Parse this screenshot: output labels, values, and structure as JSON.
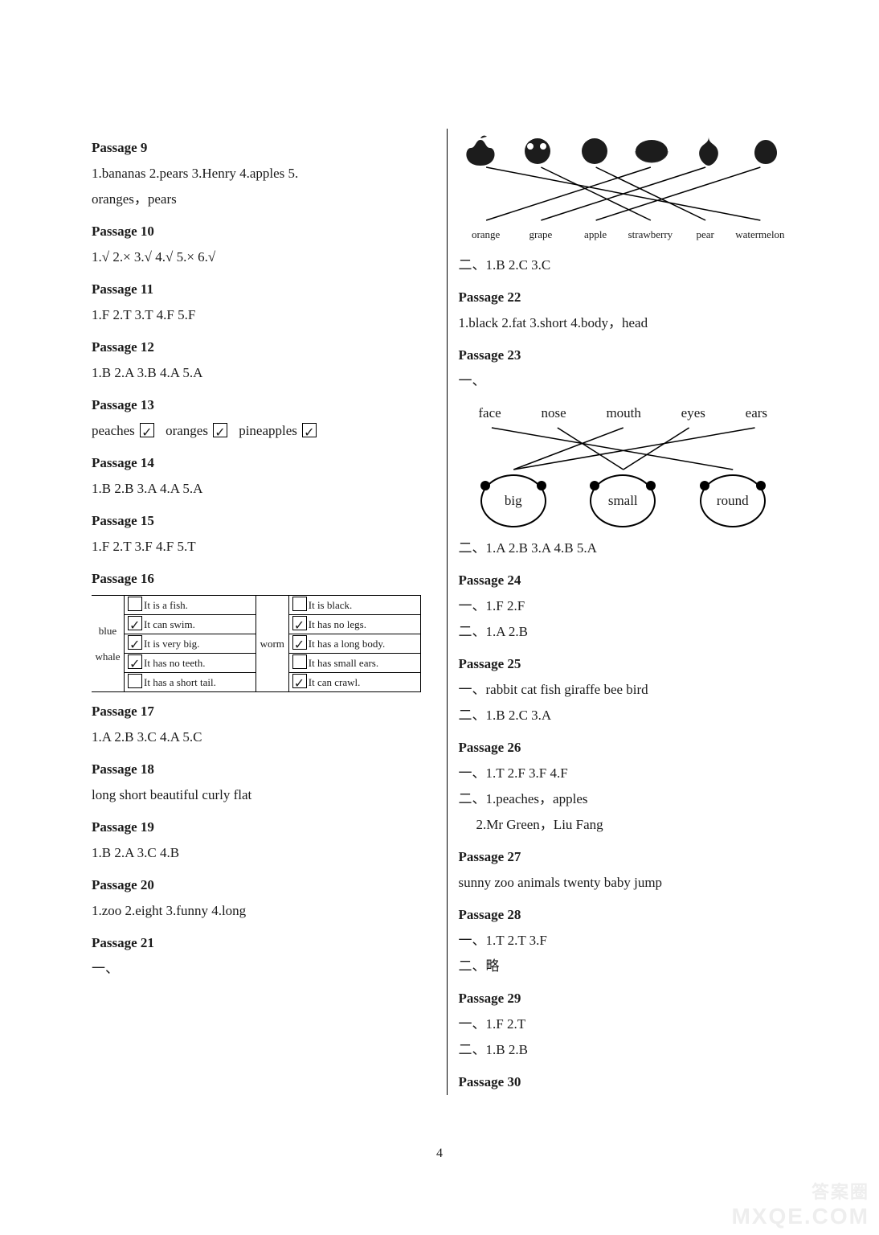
{
  "page_number": "4",
  "watermark_cn": "答案圈",
  "watermark_en": "MXQE.COM",
  "left": {
    "p9": {
      "heading": "Passage 9",
      "line1": "1.bananas   2.pears   3.Henry   4.apples   5.",
      "line2": "oranges，pears"
    },
    "p10": {
      "heading": "Passage 10",
      "answers": "1.√   2.×   3.√   4.√   5.×   6.√"
    },
    "p11": {
      "heading": "Passage 11",
      "answers": "1.F   2.T   3.T   4.F   5.F"
    },
    "p12": {
      "heading": "Passage 12",
      "answers": "1.B   2.A   3.B   4.A   5.A"
    },
    "p13": {
      "heading": "Passage 13",
      "items": [
        {
          "label": "peaches",
          "checked": true
        },
        {
          "label": "oranges",
          "checked": true
        },
        {
          "label": "pineapples",
          "checked": true
        }
      ]
    },
    "p14": {
      "heading": "Passage 14",
      "answers": "1.B   2.B   3.A   4.A   5.A"
    },
    "p15": {
      "heading": "Passage 15",
      "answers": "1.F   2.T   3.F   4.F   5.T"
    },
    "p16": {
      "heading": "Passage 16",
      "left_label": "blue whale",
      "right_label": "worm",
      "left_rows": [
        {
          "text": "It is a fish.",
          "checked": false
        },
        {
          "text": "It can swim.",
          "checked": true
        },
        {
          "text": "It is very big.",
          "checked": true
        },
        {
          "text": "It has no teeth.",
          "checked": true
        },
        {
          "text": "It has a short tail.",
          "checked": false
        }
      ],
      "right_rows": [
        {
          "text": "It is black.",
          "checked": false
        },
        {
          "text": "It has no legs.",
          "checked": true
        },
        {
          "text": "It has a long body.",
          "checked": true
        },
        {
          "text": "It has small ears.",
          "checked": false
        },
        {
          "text": "It can crawl.",
          "checked": true
        }
      ]
    },
    "p17": {
      "heading": "Passage 17",
      "answers": "1.A   2.B   3.C   4.A   5.C"
    },
    "p18": {
      "heading": "Passage 18",
      "answers": "long   short   beautiful   curly   flat"
    },
    "p19": {
      "heading": "Passage 19",
      "answers": "1.B   2.A   3.C   4.B"
    },
    "p20": {
      "heading": "Passage 20",
      "answers": "1.zoo   2.eight   3.funny   4.long"
    },
    "p21": {
      "heading": "Passage 21",
      "section": "一、"
    }
  },
  "right": {
    "fruit_diagram": {
      "labels": [
        "orange",
        "grape",
        "apple",
        "strawberry",
        "pear",
        "watermelon"
      ],
      "icon_colors": [
        "#1c1c1c",
        "#1c1c1c",
        "#1c1c1c",
        "#1c1c1c",
        "#1c1c1c",
        "#1c1c1c"
      ],
      "line_color": "#000000",
      "edges": [
        {
          "from": 0,
          "to": 5
        },
        {
          "from": 1,
          "to": 3
        },
        {
          "from": 2,
          "to": 4
        },
        {
          "from": 3,
          "to": 0
        },
        {
          "from": 4,
          "to": 1
        },
        {
          "from": 5,
          "to": 2
        }
      ]
    },
    "q21b": "二、1.B   2.C   3.C",
    "p22": {
      "heading": "Passage 22",
      "answers": "1.black   2.fat   3.short   4.body，head"
    },
    "p23": {
      "heading": "Passage 23",
      "section": "一、",
      "top_words": [
        "face",
        "nose",
        "mouth",
        "eyes",
        "ears"
      ],
      "bubbles": [
        "big",
        "small",
        "round"
      ],
      "edges": [
        {
          "from": 0,
          "to": 2
        },
        {
          "from": 1,
          "to": 1
        },
        {
          "from": 2,
          "to": 0
        },
        {
          "from": 3,
          "to": 1
        },
        {
          "from": 4,
          "to": 0
        }
      ],
      "line_color": "#000000",
      "answers2": "二、1.A   2.B   3.A   4.B   5.A"
    },
    "p24": {
      "heading": "Passage 24",
      "l1": "一、1.F   2.F",
      "l2": "二、1.A   2.B"
    },
    "p25": {
      "heading": "Passage 25",
      "l1": "一、rabbit   cat   fish   giraffe   bee   bird",
      "l2": "二、1.B   2.C   3.A"
    },
    "p26": {
      "heading": "Passage 26",
      "l1": "一、1.T   2.F   3.F   4.F",
      "l2": "二、1.peaches，apples",
      "l3": "   2.Mr Green，Liu Fang"
    },
    "p27": {
      "heading": "Passage 27",
      "answers": "sunny   zoo   animals   twenty   baby   jump"
    },
    "p28": {
      "heading": "Passage 28",
      "l1": "一、1.T   2.T   3.F",
      "l2": "二、略"
    },
    "p29": {
      "heading": "Passage 29",
      "l1": "一、1.F   2.T",
      "l2": "二、1.B   2.B"
    },
    "p30": {
      "heading": "Passage 30"
    }
  }
}
